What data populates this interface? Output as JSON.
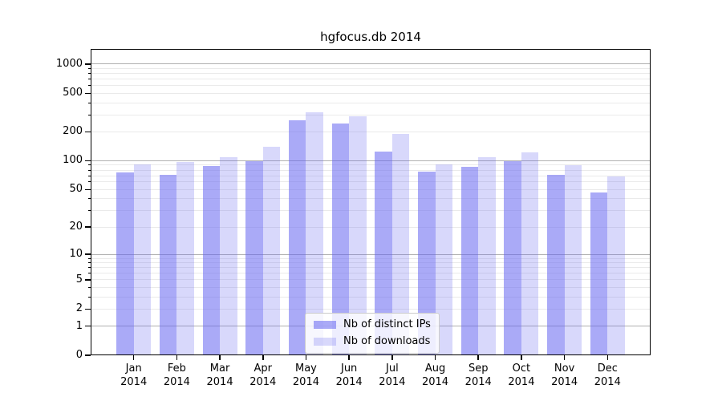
{
  "figure": {
    "background": "#ffffff"
  },
  "chart_data": {
    "type": "bar",
    "title": "hgfocus.db 2014",
    "xlabel": "",
    "ylabel": "",
    "scale": "log1p (symlog-like, 0 at baseline)",
    "ylim": [
      0,
      1435
    ],
    "grid": true,
    "legend_position": "lower center inside plot",
    "categories": [
      "Jan",
      "Feb",
      "Mar",
      "Apr",
      "May",
      "Jun",
      "Jul",
      "Aug",
      "Sep",
      "Oct",
      "Nov",
      "Dec"
    ],
    "year": "2014",
    "series": [
      {
        "name": "Nb of distinct IPs",
        "key": "distinct-ips",
        "color": "rgba(100,100,240,0.55)",
        "values": [
          76,
          71,
          89,
          100,
          263,
          243,
          124,
          77,
          87,
          100,
          72,
          47
        ]
      },
      {
        "name": "Nb of downloads",
        "key": "downloads",
        "color": "rgba(100,100,240,0.25)",
        "values": [
          92,
          98,
          110,
          139,
          318,
          291,
          190,
          92,
          108,
          123,
          90,
          69
        ]
      }
    ],
    "yticks": [
      {
        "v": 0,
        "label": "0"
      },
      {
        "v": 1,
        "label": "1"
      },
      {
        "v": 2,
        "label": "2"
      },
      {
        "v": 5,
        "label": "5"
      },
      {
        "v": 10,
        "label": "10"
      },
      {
        "v": 20,
        "label": "20"
      },
      {
        "v": 50,
        "label": "50"
      },
      {
        "v": 100,
        "label": "100"
      },
      {
        "v": 200,
        "label": "200"
      },
      {
        "v": 500,
        "label": "500"
      },
      {
        "v": 1000,
        "label": "1000"
      }
    ],
    "gridlines": {
      "major": [
        1,
        10,
        100,
        1000
      ],
      "minor": [
        2,
        3,
        4,
        5,
        6,
        7,
        8,
        9,
        20,
        30,
        40,
        50,
        60,
        70,
        80,
        90,
        200,
        300,
        400,
        500,
        600,
        700,
        800,
        900
      ]
    },
    "colors": {
      "grid_major": "#b0b0b0",
      "grid_minor": "#eaeaea",
      "spine": "#000000",
      "text": "#000000",
      "legend_border": "#cccccc",
      "legend_bg": "rgba(255,255,255,0.8)"
    }
  }
}
